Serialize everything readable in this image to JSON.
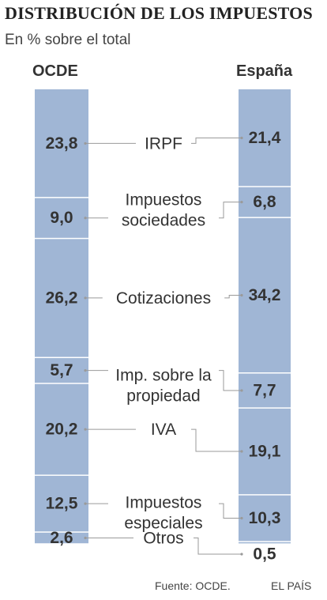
{
  "title": "DISTRIBUCIÓN DE LOS IMPUESTOS",
  "subtitle": "En % sobre el total",
  "source": "Fuente: OCDE.",
  "brand": "EL PAÍS",
  "colors": {
    "bar": "#a0b6d5",
    "line": "#9a9a9a",
    "text": "#333333"
  },
  "chart_data": {
    "type": "bar",
    "stacked": true,
    "series": [
      {
        "name": "OCDE",
        "values": [
          23.8,
          9.0,
          26.2,
          5.7,
          20.2,
          12.5,
          2.6
        ],
        "labels": [
          "23,8",
          "9,0",
          "26,2",
          "5,7",
          "20,2",
          "12,5",
          "2,6"
        ]
      },
      {
        "name": "España",
        "values": [
          21.4,
          6.8,
          34.2,
          7.7,
          19.1,
          10.3,
          0.5
        ],
        "labels": [
          "21,4",
          "6,8",
          "34,2",
          "7,7",
          "19,1",
          "10,3",
          "0,5"
        ]
      }
    ],
    "categories": [
      [
        "IRPF"
      ],
      [
        "Impuestos",
        "sociedades"
      ],
      [
        "Cotizaciones"
      ],
      [
        "Imp. sobre la",
        "propiedad"
      ],
      [
        "IVA"
      ],
      [
        "Impuestos",
        "especiales"
      ],
      [
        "Otros"
      ]
    ]
  }
}
